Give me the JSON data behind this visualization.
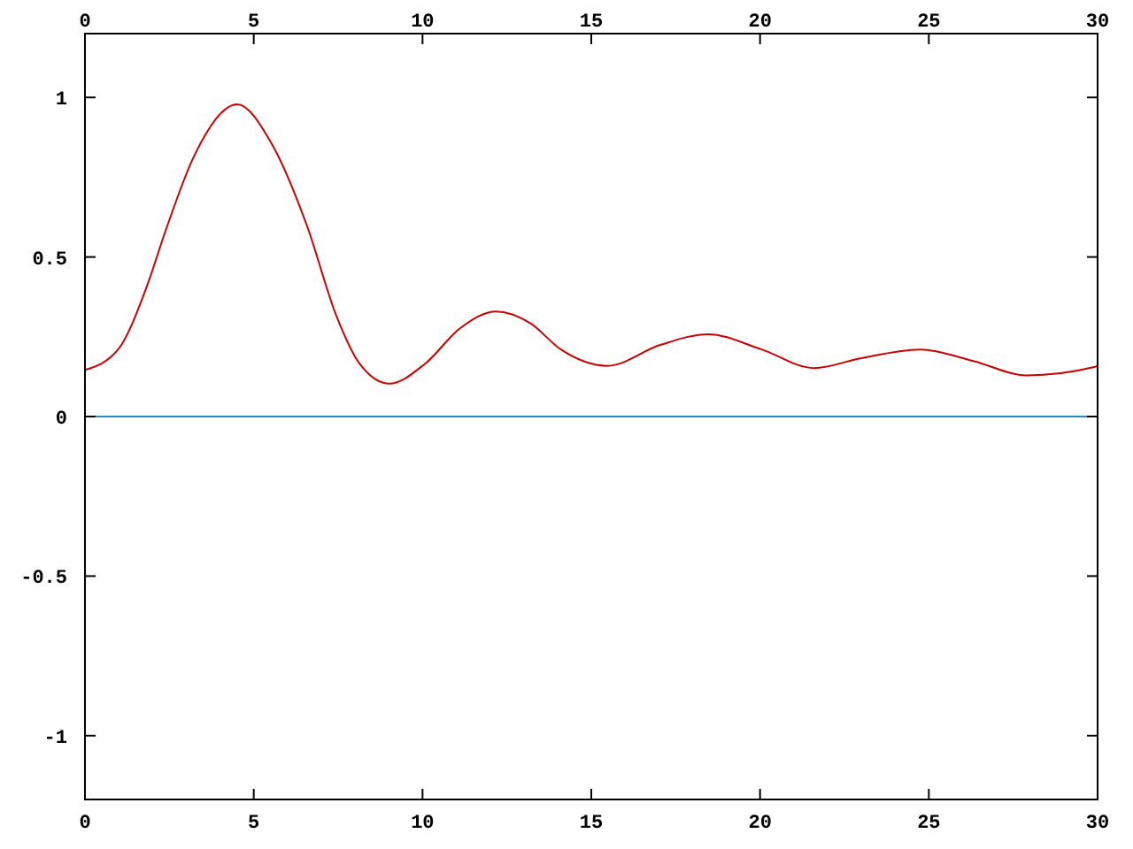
{
  "chart_data": {
    "type": "line",
    "xlim": [
      0,
      30
    ],
    "xticks": [
      0,
      5,
      10,
      15,
      20,
      25,
      30
    ],
    "x2lim": [
      0,
      30
    ],
    "x2ticks": [
      0,
      5,
      10,
      15,
      20,
      25,
      30
    ],
    "ylim": [
      -1.2,
      1.2
    ],
    "yticks": [
      -1,
      -0.5,
      0,
      0.5,
      1
    ],
    "grid": false,
    "series": [
      {
        "color": "#cc0000",
        "x": [
          0,
          0.98,
          1.84,
          2.38,
          3.25,
          4.51,
          5.52,
          6.57,
          7.45,
          8.14,
          9.02,
          10.07,
          11.12,
          12.17,
          13.2,
          14.09,
          15.48,
          17.06,
          18.46,
          20.03,
          21.6,
          23.0,
          24.75,
          26.32,
          27.9,
          29.9,
          30
        ],
        "values": [
          0.146,
          0.21,
          0.41,
          0.58,
          0.82,
          0.978,
          0.857,
          0.6,
          0.315,
          0.165,
          0.103,
          0.165,
          0.277,
          0.329,
          0.292,
          0.211,
          0.159,
          0.225,
          0.258,
          0.211,
          0.152,
          0.183,
          0.21,
          0.174,
          0.129,
          0.155,
          0.16
        ]
      }
    ],
    "ref_lines": [
      {
        "axis": "y",
        "value": 0,
        "color": "#1f8fc8"
      }
    ]
  }
}
